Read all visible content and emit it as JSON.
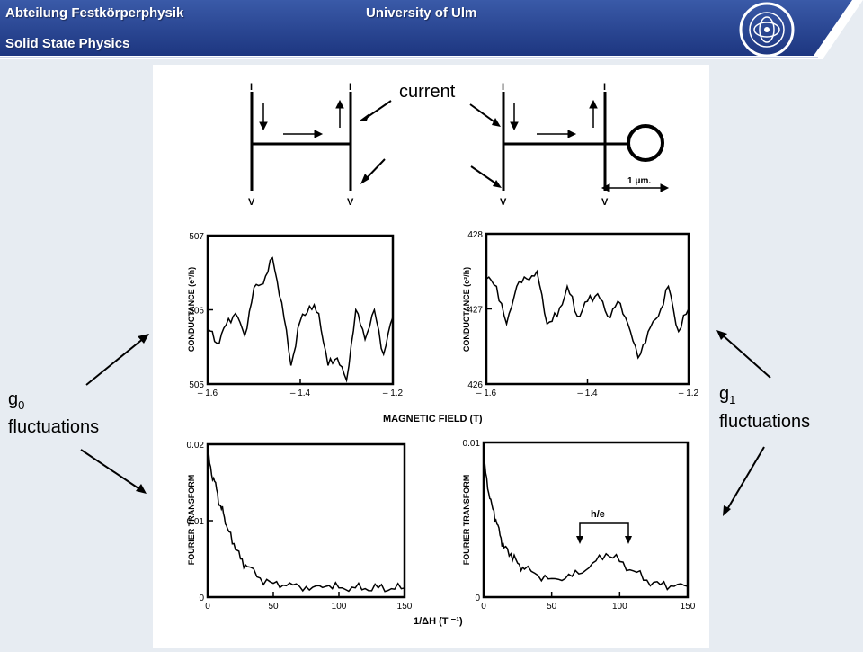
{
  "header": {
    "department": "Abteilung Festkörperphysik",
    "university": "University of Ulm",
    "subtitle": "Solid State Physics",
    "logo_text": "UNIVERSITÄT ULM"
  },
  "labels": {
    "current": "current",
    "g0_symbol": "g",
    "g0_sub": "0",
    "g0_text": "fluctuations",
    "g1_symbol": "g",
    "g1_sub": "1",
    "g1_text": "fluctuations"
  },
  "schematic": {
    "lead_top": "I",
    "lead_bottom": "V",
    "scale": "1 μm."
  },
  "chart_data": [
    {
      "type": "line",
      "ylabel": "CONDUCTANCE (e²/h)",
      "xlabel": "MAGNETIC FIELD (T)",
      "xlim": [
        -1.6,
        -1.2
      ],
      "ylim": [
        505,
        507
      ],
      "xticks": [
        "– 1.6",
        "– 1.4",
        "– 1.2"
      ],
      "yticks": [
        "507",
        "506",
        "505"
      ],
      "x": [
        -1.6,
        -1.58,
        -1.56,
        -1.54,
        -1.52,
        -1.5,
        -1.48,
        -1.46,
        -1.44,
        -1.42,
        -1.4,
        -1.38,
        -1.36,
        -1.34,
        -1.32,
        -1.3,
        -1.28,
        -1.26,
        -1.24,
        -1.22,
        -1.2
      ],
      "values": [
        505.75,
        505.55,
        505.8,
        505.95,
        505.65,
        506.3,
        506.35,
        506.7,
        506.1,
        505.25,
        505.85,
        506.05,
        505.95,
        505.25,
        505.35,
        505.05,
        506.0,
        505.6,
        506.0,
        505.4,
        505.9
      ]
    },
    {
      "type": "line",
      "ylabel": "CONDUCTANCE (e²/h)",
      "xlabel": "MAGNETIC FIELD (T)",
      "xlim": [
        -1.6,
        -1.2
      ],
      "ylim": [
        426,
        428
      ],
      "xticks": [
        "– 1.6",
        "– 1.4",
        "– 1.2"
      ],
      "yticks": [
        "428",
        "427",
        "426"
      ],
      "x": [
        -1.6,
        -1.58,
        -1.56,
        -1.54,
        -1.52,
        -1.5,
        -1.48,
        -1.46,
        -1.44,
        -1.42,
        -1.4,
        -1.38,
        -1.36,
        -1.34,
        -1.32,
        -1.3,
        -1.28,
        -1.26,
        -1.24,
        -1.22,
        -1.2
      ],
      "values": [
        427.4,
        427.3,
        426.8,
        427.3,
        427.4,
        427.5,
        426.8,
        426.9,
        427.3,
        426.9,
        427.1,
        427.2,
        426.9,
        427.1,
        426.8,
        426.35,
        426.7,
        426.9,
        427.3,
        426.7,
        427.0
      ]
    },
    {
      "type": "line",
      "ylabel": "FOURIER TRANSFORM",
      "xlabel": "1/ΔH (T ⁻¹)",
      "xlim": [
        0,
        150
      ],
      "ylim": [
        0,
        0.02
      ],
      "xticks": [
        "0",
        "50",
        "100",
        "150"
      ],
      "yticks": [
        "0.02",
        "0.01",
        "0"
      ],
      "x": [
        0,
        3,
        6,
        9,
        12,
        15,
        20,
        25,
        30,
        40,
        50,
        60,
        70,
        80,
        90,
        100,
        110,
        120,
        130,
        140,
        150
      ],
      "values": [
        0.019,
        0.016,
        0.015,
        0.012,
        0.011,
        0.009,
        0.007,
        0.005,
        0.004,
        0.0025,
        0.0018,
        0.0015,
        0.0014,
        0.0013,
        0.0014,
        0.0012,
        0.0013,
        0.0011,
        0.0012,
        0.0011,
        0.0012
      ]
    },
    {
      "type": "line",
      "ylabel": "FOURIER TRANSFORM",
      "xlabel": "1/ΔH (T ⁻¹)",
      "xlim": [
        0,
        150
      ],
      "ylim": [
        0,
        0.01
      ],
      "xticks": [
        "0",
        "50",
        "100",
        "150"
      ],
      "yticks": [
        "0.01",
        "0"
      ],
      "annotation": "h/e",
      "x": [
        0,
        3,
        6,
        9,
        12,
        15,
        20,
        25,
        30,
        40,
        50,
        60,
        70,
        80,
        90,
        100,
        110,
        120,
        130,
        140,
        150
      ],
      "values": [
        0.009,
        0.007,
        0.006,
        0.005,
        0.004,
        0.0032,
        0.0028,
        0.0022,
        0.0018,
        0.0014,
        0.0012,
        0.0012,
        0.0015,
        0.0022,
        0.0028,
        0.0023,
        0.0017,
        0.0011,
        0.0008,
        0.0007,
        0.0007
      ]
    }
  ]
}
